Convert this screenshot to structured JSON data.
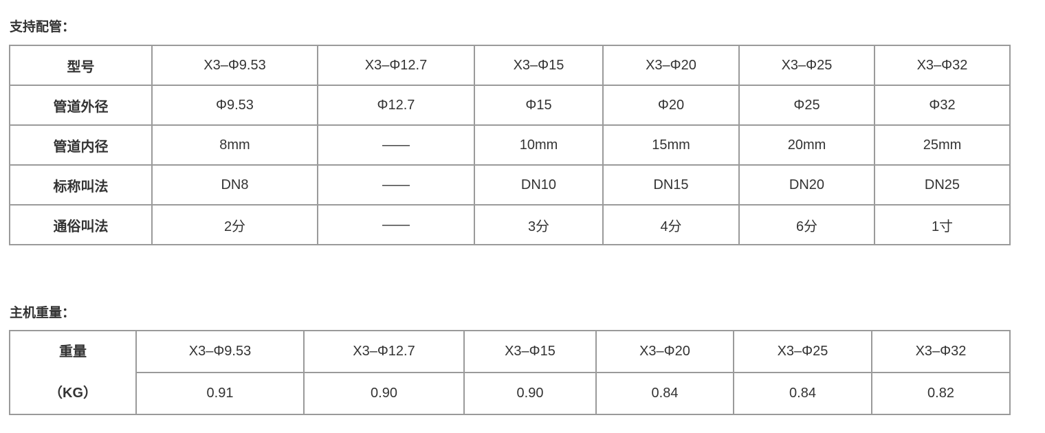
{
  "pipes": {
    "title": "支持配管：",
    "rows": [
      {
        "label": "型号",
        "values": [
          "X3–Φ9.53",
          "X3–Φ12.7",
          "X3–Φ15",
          "X3–Φ20",
          "X3–Φ25",
          "X3–Φ32"
        ]
      },
      {
        "label": "管道外径",
        "values": [
          "Φ9.53",
          "Φ12.7",
          "Φ15",
          "Φ20",
          "Φ25",
          "Φ32"
        ]
      },
      {
        "label": "管道内径",
        "values": [
          "8mm",
          "——",
          "10mm",
          "15mm",
          "20mm",
          "25mm"
        ]
      },
      {
        "label": "标称叫法",
        "values": [
          "DN8",
          "——",
          "DN10",
          "DN15",
          "DN20",
          "DN25"
        ]
      },
      {
        "label": "通俗叫法",
        "values": [
          "2分",
          "——",
          "3分",
          "4分",
          "6分",
          "1寸"
        ]
      }
    ]
  },
  "weight": {
    "title": "主机重量：",
    "label_line1": "重量",
    "label_line2": "（KG）",
    "models": [
      "X3–Φ9.53",
      "X3–Φ12.7",
      "X3–Φ15",
      "X3–Φ20",
      "X3–Φ25",
      "X3–Φ32"
    ],
    "values": [
      "0.91",
      "0.90",
      "0.90",
      "0.84",
      "0.84",
      "0.82"
    ]
  }
}
